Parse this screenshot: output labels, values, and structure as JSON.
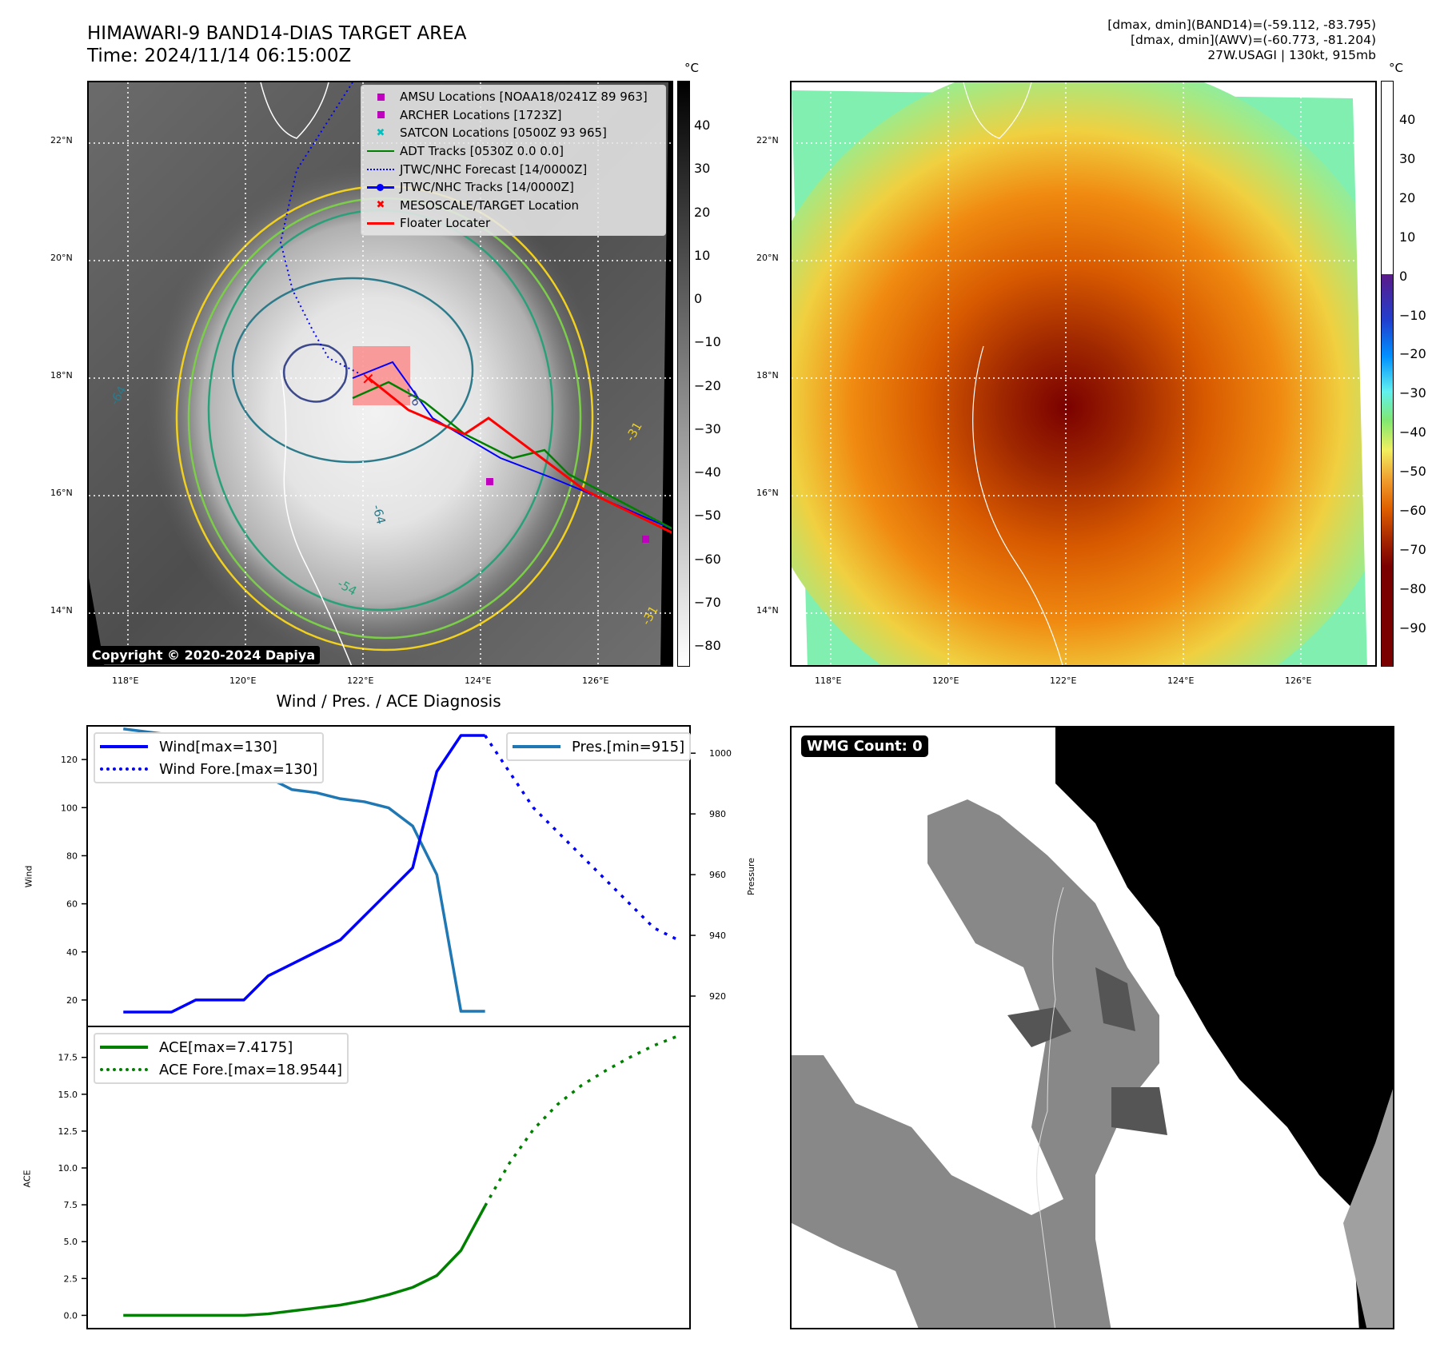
{
  "header": {
    "title_line1": "HIMAWARI-9 BAND14-DIAS TARGET AREA",
    "title_line2": "Time: 2024/11/14 06:15:00Z",
    "info_line1": "[dmax, dmin](BAND14)=(-59.112, -83.795)",
    "info_line2": "[dmax, dmin](AWV)=(-60.773, -81.204)",
    "info_line3": "27W.USAGI | 130kt, 915mb"
  },
  "maps": {
    "lat_ticks": [
      "22°N",
      "20°N",
      "18°N",
      "16°N",
      "14°N"
    ],
    "lon_ticks": [
      "118°E",
      "120°E",
      "122°E",
      "124°E",
      "126°E"
    ],
    "ir_colorbar": {
      "unit": "°C",
      "ticks": [
        "40",
        "30",
        "20",
        "10",
        "0",
        "−10",
        "−20",
        "−30",
        "−40",
        "−50",
        "−60",
        "−70",
        "−80"
      ],
      "colors": {
        "top": "#000000",
        "bottom": "#ffffff"
      }
    },
    "awv_colorbar": {
      "unit": "°C",
      "ticks": [
        "40",
        "30",
        "20",
        "10",
        "0",
        "−10",
        "−20",
        "−30",
        "−40",
        "−50",
        "−60",
        "−70",
        "−80",
        "−90"
      ]
    },
    "legend": [
      {
        "label": "AMSU Locations [NOAA18/0241Z 89 963]",
        "symbol": "square",
        "color": "#bf00bf"
      },
      {
        "label": "ARCHER Locations [1723Z]",
        "symbol": "square",
        "color": "#bf00bf"
      },
      {
        "label": "SATCON Locations [0500Z 93 965]",
        "symbol": "x",
        "color": "#00bfbf"
      },
      {
        "label": "ADT Tracks [0530Z 0.0 0.0]",
        "symbol": "line",
        "color": "#008000"
      },
      {
        "label": "JTWC/NHC Forecast [14/0000Z]",
        "symbol": "dotted",
        "color": "#0000ff"
      },
      {
        "label": "JTWC/NHC Tracks [14/0000Z]",
        "symbol": "line-dot",
        "color": "#0000ff"
      },
      {
        "label": "MESOSCALE/TARGET Location",
        "symbol": "x",
        "color": "#ff0000"
      },
      {
        "label": "Floater Locater",
        "symbol": "line",
        "color": "#ff0000"
      }
    ],
    "contour_labels": [
      "-64",
      "-76",
      "-64",
      "-54",
      "-31",
      "-31"
    ],
    "copyright": "Copyright © 2020-2024 Dapiya",
    "wmg_label": "WMG Count: 0"
  },
  "chart_data": [
    {
      "type": "line",
      "title": "Wind / Pres. / ACE Diagnosis",
      "xlabel": "",
      "ylabel": "Wind",
      "ylabel_right": "Pressure",
      "ylim": [
        9,
        134
      ],
      "ylim_right": [
        910,
        1009
      ],
      "yticks": [
        20,
        40,
        60,
        80,
        100,
        120
      ],
      "yticks_right": [
        920,
        940,
        960,
        980,
        1000
      ],
      "xlim": [
        -1.5,
        23.5
      ],
      "series": [
        {
          "name": "Wind[max=130]",
          "axis": "left",
          "style": "solid",
          "color": "#0000ff",
          "x": [
            0,
            1,
            2,
            3,
            4,
            5,
            6,
            7,
            8,
            9,
            10,
            11,
            12,
            13,
            14,
            15
          ],
          "values": [
            15,
            15,
            15,
            20,
            20,
            20,
            30,
            35,
            40,
            45,
            55,
            65,
            75,
            115,
            130,
            130
          ]
        },
        {
          "name": "Wind Fore.[max=130]",
          "axis": "left",
          "style": "dotted",
          "color": "#0000ff",
          "x": [
            15,
            16,
            17,
            18,
            19,
            20,
            21,
            22,
            23
          ],
          "values": [
            130,
            115,
            100,
            90,
            80,
            70,
            60,
            50,
            45
          ]
        },
        {
          "name": "Pres.[min=915]",
          "axis": "right",
          "style": "solid",
          "color": "#1f77b4",
          "x": [
            0,
            1,
            2,
            3,
            4,
            5,
            6,
            7,
            8,
            9,
            10,
            11,
            12,
            13,
            14,
            15
          ],
          "values": [
            1008,
            1007,
            1006,
            1005,
            1003,
            998,
            992,
            988,
            987,
            985,
            984,
            982,
            976,
            960,
            915,
            915
          ]
        }
      ]
    },
    {
      "type": "line",
      "title": "",
      "ylabel": "ACE",
      "ylim": [
        -0.9,
        19.6
      ],
      "yticks": [
        0.0,
        2.5,
        5.0,
        7.5,
        10.0,
        12.5,
        15.0,
        17.5
      ],
      "xlim": [
        -1.5,
        23.5
      ],
      "series": [
        {
          "name": "ACE[max=7.4175]",
          "style": "solid",
          "color": "#008000",
          "x": [
            0,
            1,
            2,
            3,
            4,
            5,
            6,
            7,
            8,
            9,
            10,
            11,
            12,
            13,
            14,
            15
          ],
          "values": [
            0,
            0,
            0,
            0,
            0,
            0,
            0.1,
            0.3,
            0.5,
            0.7,
            1.0,
            1.4,
            1.9,
            2.7,
            4.4,
            7.4175
          ]
        },
        {
          "name": "ACE Fore.[max=18.9544]",
          "style": "dotted",
          "color": "#008000",
          "x": [
            15,
            16,
            17,
            18,
            19,
            20,
            21,
            22,
            23
          ],
          "values": [
            7.4175,
            10.3,
            12.6,
            14.3,
            15.6,
            16.6,
            17.5,
            18.3,
            18.9544
          ]
        }
      ]
    }
  ]
}
